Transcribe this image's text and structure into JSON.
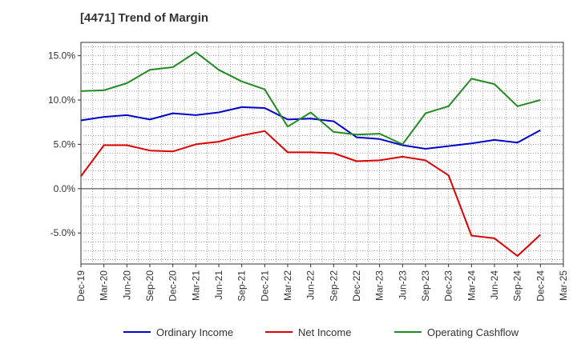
{
  "chart_data": {
    "type": "line",
    "title": "[4471]  Trend of Margin",
    "xlabel": "",
    "ylabel": "",
    "categories": [
      "Dec-19",
      "Mar-20",
      "Jun-20",
      "Sep-20",
      "Dec-20",
      "Mar-21",
      "Jun-21",
      "Sep-21",
      "Dec-21",
      "Mar-22",
      "Jun-22",
      "Sep-22",
      "Dec-22",
      "Mar-23",
      "Jun-23",
      "Sep-23",
      "Dec-23",
      "Mar-24",
      "Jun-24",
      "Sep-24",
      "Dec-24",
      "Mar-25"
    ],
    "ylim": [
      -8.5,
      16.5
    ],
    "yticks": [
      -5.0,
      0.0,
      5.0,
      10.0,
      15.0
    ],
    "ytick_labels": [
      "-5.0%",
      "0.0%",
      "5.0%",
      "10.0%",
      "15.0%"
    ],
    "grid": true,
    "legend_position": "bottom",
    "series": [
      {
        "name": "Ordinary Income",
        "color": "#0000cc",
        "values": [
          7.7,
          8.1,
          8.3,
          7.8,
          8.5,
          8.3,
          8.6,
          9.2,
          9.1,
          7.8,
          7.9,
          7.6,
          5.8,
          5.6,
          4.9,
          4.5,
          4.8,
          5.1,
          5.5,
          5.2,
          6.6,
          null
        ]
      },
      {
        "name": "Net Income",
        "color": "#dd0000",
        "values": [
          1.4,
          4.9,
          4.9,
          4.3,
          4.2,
          5.0,
          5.3,
          6.0,
          6.5,
          4.1,
          4.1,
          4.0,
          3.1,
          3.2,
          3.6,
          3.2,
          1.5,
          -5.3,
          -5.6,
          -7.6,
          -5.2,
          null
        ]
      },
      {
        "name": "Operating Cashflow",
        "color": "#228B22",
        "values": [
          11.0,
          11.1,
          11.9,
          13.4,
          13.7,
          15.4,
          13.4,
          12.1,
          11.2,
          7.0,
          8.6,
          6.4,
          6.1,
          6.2,
          5.0,
          8.5,
          9.3,
          12.4,
          11.8,
          9.3,
          10.0,
          null
        ]
      }
    ]
  }
}
